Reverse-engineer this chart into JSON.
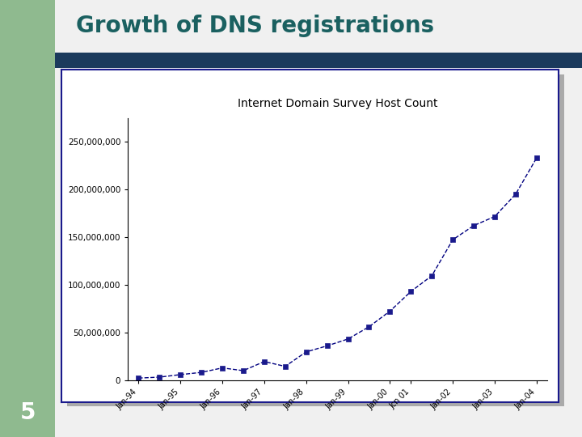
{
  "title_part1": "Growth of ",
  "title_part2": "DNS registrations",
  "chart_title": "Internet Domain Survey Host Count",
  "slide_number": "5",
  "background_color": "#f0f0f0",
  "left_panel_color": "#8fba8f",
  "title_bar_color": "#1b3a5c",
  "title_color": "#1a6060",
  "x_labels": [
    "Jan-94",
    "",
    "Jan-95",
    "",
    "Jan-96",
    "",
    "Jan-97",
    "",
    "Jan-98",
    "",
    "Jan-99",
    "",
    "Jan-00",
    "Jcn 01",
    "",
    "Jan-02",
    "",
    "Jan-03",
    "",
    "Jan-04"
  ],
  "x_tick_labels": [
    "Jan-94",
    "Jan-95",
    "Jan-96",
    "Jan-97",
    "Jan-98",
    "Jan-99",
    "Jan-00",
    "Jcn 01",
    "Jan-02",
    "Jan-03",
    "Jan-04"
  ],
  "y_values": [
    2217000,
    3212000,
    5846000,
    8200000,
    12881000,
    10000000,
    19540000,
    14500000,
    29670000,
    36000000,
    43230000,
    56000000,
    72398092,
    93047785,
    109574429,
    147344723,
    162128493,
    171638297,
    195138905,
    233101481
  ],
  "line_color": "#000080",
  "marker_color": "#1a1a8c",
  "ylim": [
    0,
    275000000
  ],
  "yticks": [
    0,
    50000000,
    100000000,
    150000000,
    200000000,
    250000000
  ],
  "ytick_labels": [
    "0",
    "50,000,000",
    "100,000,000",
    "150,000,000",
    "200,000,000",
    "250,000,000"
  ],
  "chart_bg": "#ffffff",
  "chart_border_color": "#1a1a8c",
  "shadow_color": "#aaaaaa"
}
